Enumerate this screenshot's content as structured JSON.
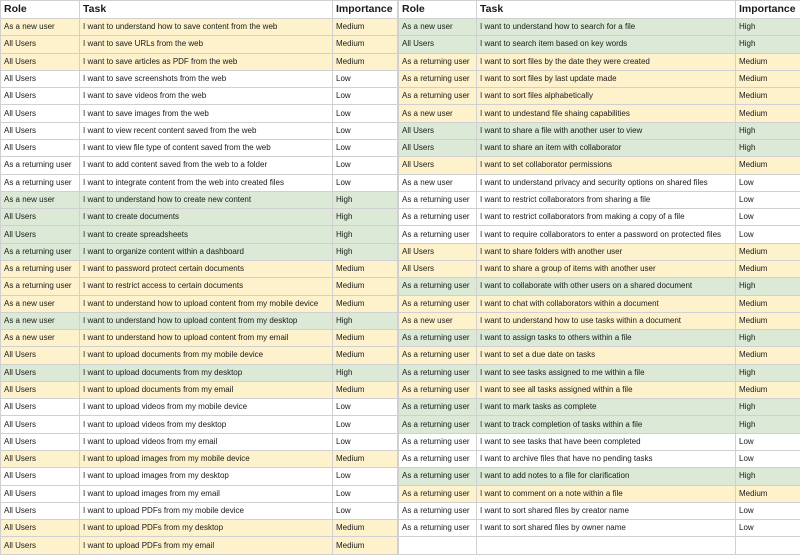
{
  "colors": {
    "high": "#dbe9d6",
    "medium": "#fdf2cc",
    "low": "#ffffff"
  },
  "headers": {
    "role": "Role",
    "task": "Task",
    "importance": "Importance"
  },
  "left": [
    {
      "role": "As a new user",
      "task": "I want to understand how to save content from the web",
      "importance": "Medium"
    },
    {
      "role": "All Users",
      "task": "I want to save URLs from the web",
      "importance": "Medium"
    },
    {
      "role": "All Users",
      "task": "I want to save articles as PDF from the web",
      "importance": "Medium"
    },
    {
      "role": "All Users",
      "task": "I want to save screenshots from the web",
      "importance": "Low"
    },
    {
      "role": "All Users",
      "task": "I want to save videos from the web",
      "importance": "Low"
    },
    {
      "role": "All Users",
      "task": "I want to save images from the web",
      "importance": "Low"
    },
    {
      "role": "All Users",
      "task": "I want to view recent content saved from the web",
      "importance": "Low"
    },
    {
      "role": "All Users",
      "task": "I want to view file type of content saved from the web",
      "importance": "Low"
    },
    {
      "role": "As a returning user",
      "task": "I want to add content saved from the web to a folder",
      "importance": "Low"
    },
    {
      "role": "As a returning user",
      "task": "I want to integrate content from the web into created files",
      "importance": "Low"
    },
    {
      "role": "As a new user",
      "task": "I want to understand how to create new content",
      "importance": "High"
    },
    {
      "role": "All Users",
      "task": "I want to create documents",
      "importance": "High"
    },
    {
      "role": "All Users",
      "task": "I want to create spreadsheets",
      "importance": "High"
    },
    {
      "role": "As a returning user",
      "task": "I want to organize content  within a dashboard",
      "importance": "High"
    },
    {
      "role": "As a returning user",
      "task": "I want to password protect certain documents",
      "importance": "Medium"
    },
    {
      "role": "As a returning user",
      "task": "I want to restrict access to certain documents",
      "importance": "Medium"
    },
    {
      "role": "As a new user",
      "task": "I want to understand how to upload content from my mobile device",
      "importance": "Medium"
    },
    {
      "role": "As a new user",
      "task": "I want to understand how to upload content from my desktop",
      "importance": "High"
    },
    {
      "role": "As a new user",
      "task": "I want to understand how to upload content from my email",
      "importance": "Medium"
    },
    {
      "role": "All Users",
      "task": "I want to upload documents from my mobile device",
      "importance": "Medium"
    },
    {
      "role": "All Users",
      "task": "I want to upload documents from my desktop",
      "importance": "High"
    },
    {
      "role": "All Users",
      "task": "I want to upload documents from my email",
      "importance": "Medium"
    },
    {
      "role": "All Users",
      "task": "I want to upload videos from my mobile device",
      "importance": "Low"
    },
    {
      "role": "All Users",
      "task": "I want to upload videos from my desktop",
      "importance": "Low"
    },
    {
      "role": "All Users",
      "task": "I want to upload videos from my email",
      "importance": "Low"
    },
    {
      "role": "All Users",
      "task": "I want to upload images from my mobile device",
      "importance": "Medium"
    },
    {
      "role": "All Users",
      "task": "I want to upload images from my desktop",
      "importance": "Low"
    },
    {
      "role": "All Users",
      "task": "I want to upload images from my email",
      "importance": "Low"
    },
    {
      "role": "All Users",
      "task": "I want to upload PDFs from my mobile device",
      "importance": "Low"
    },
    {
      "role": "All Users",
      "task": "I want to upload PDFs from my desktop",
      "importance": "Medium"
    },
    {
      "role": "All Users",
      "task": "I want to upload PDFs from my email",
      "importance": "Medium"
    }
  ],
  "right": [
    {
      "role": "As a new user",
      "task": "I want to understand how to search for a file",
      "importance": "High"
    },
    {
      "role": "All Users",
      "task": "I want to search item based on key words",
      "importance": "High"
    },
    {
      "role": "As a returning user",
      "task": "I want to sort files by the date they were created",
      "importance": "Medium"
    },
    {
      "role": "As a returning user",
      "task": "I want to sort files by last update made",
      "importance": "Medium"
    },
    {
      "role": "As a returning user",
      "task": "I want to sort files alphabetically",
      "importance": "Medium"
    },
    {
      "role": "As a new user",
      "task": "I want to undestand file shaing capabilities",
      "importance": "Medium"
    },
    {
      "role": "All Users",
      "task": "I want to share a file with another user to view",
      "importance": "High"
    },
    {
      "role": "All Users",
      "task": "I want to share an item with collaborator",
      "importance": "High"
    },
    {
      "role": "All Users",
      "task": "I want to set collaborator permissions",
      "importance": "Medium"
    },
    {
      "role": "As a new user",
      "task": "I want to understand privacy and security options on shared files",
      "importance": "Low"
    },
    {
      "role": "As a returning user",
      "task": "I want to restrict collaborators from sharing a file",
      "importance": "Low"
    },
    {
      "role": "As a returning user",
      "task": "I want to restrict collaborators from making a copy of a file",
      "importance": "Low"
    },
    {
      "role": "As a returning user",
      "task": "I want to require collaborators to enter a password on protected files",
      "importance": "Low"
    },
    {
      "role": "All Users",
      "task": "I want to share folders with another user",
      "importance": "Medium"
    },
    {
      "role": "All Users",
      "task": "I want to share a group of items with another user",
      "importance": "Medium"
    },
    {
      "role": "As a returning user",
      "task": "I want to collaborate with other users on a shared document",
      "importance": "High"
    },
    {
      "role": "As a returning user",
      "task": "I want to chat with collaborators within a document",
      "importance": "Medium"
    },
    {
      "role": "As a new user",
      "task": "I want to understand how to use tasks within a document",
      "importance": "Medium"
    },
    {
      "role": "As a returning user",
      "task": "I want to assign tasks to others within a file",
      "importance": "High"
    },
    {
      "role": "As a returning user",
      "task": "I want to set a due date on tasks",
      "importance": "Medium"
    },
    {
      "role": "As a returning user",
      "task": "I want to see tasks assigned to me within a file",
      "importance": "High"
    },
    {
      "role": "As a returning user",
      "task": "I want to see all tasks assigned within a file",
      "importance": "Medium"
    },
    {
      "role": "As a returning user",
      "task": "I want to mark tasks as complete",
      "importance": "High"
    },
    {
      "role": "As a returning user",
      "task": "I want to track completion of tasks within a file",
      "importance": "High"
    },
    {
      "role": "As a returning user",
      "task": "I want to see tasks that have been completed",
      "importance": "Low"
    },
    {
      "role": "As a returning user",
      "task": "I want to archive files that have no pending tasks",
      "importance": "Low"
    },
    {
      "role": "As a returning user",
      "task": "I want to add notes to a file for clarification",
      "importance": "High"
    },
    {
      "role": "As a returning user",
      "task": "I want to comment on a note within a file",
      "importance": "Medium"
    },
    {
      "role": "As a returning user",
      "task": "I want to sort shared files by creator name",
      "importance": "Low"
    },
    {
      "role": "As a returning user",
      "task": "I want to sort shared files by owner name",
      "importance": "Low"
    },
    {
      "role": "",
      "task": "",
      "importance": ""
    }
  ]
}
